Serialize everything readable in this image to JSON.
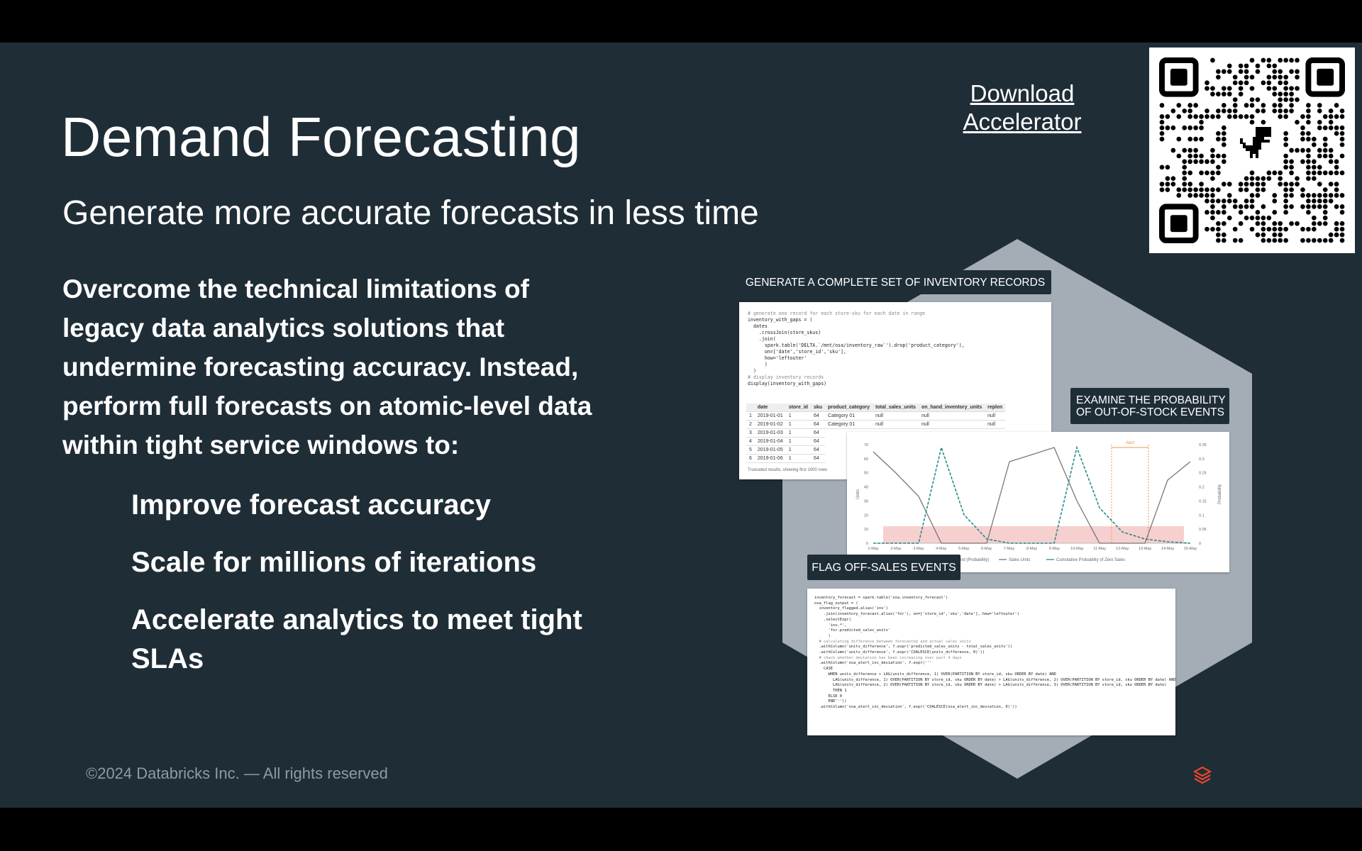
{
  "header": {
    "title": "Demand Forecasting",
    "subtitle": "Generate more accurate forecasts in less time",
    "link": [
      "Download",
      "Accelerator"
    ]
  },
  "body": {
    "paragraph": [
      "Overcome the technical limitations of",
      "legacy data analytics solutions that",
      "undermine forecasting accuracy. Instead,",
      "perform full forecasts on atomic-level data",
      "within tight service windows to:"
    ],
    "bullets": [
      [
        "Improve forecast accuracy"
      ],
      [
        "Scale for millions of iterations"
      ],
      [
        "Accelerate analytics to meet tight",
        "SLAs"
      ]
    ]
  },
  "panels": {
    "inventory": {
      "label": "GENERATE A COMPLETE SET OF INVENTORY RECORDS",
      "code": [
        "# generate one record for each store-sku for each date in range",
        "inventory_with_gaps = (",
        "  dates",
        "    .crossJoin(store_skus)",
        "    .join(",
        "      spark.table('DELTA.`/mnt/osa/inventory_raw`').drop('product_category'),",
        "      on=['date','store_id','sku'],",
        "      how='leftouter'",
        "      )",
        "  )",
        "# display inventory records",
        "display(inventory_with_gaps)"
      ],
      "columns": [
        "date",
        "store_id",
        "sku",
        "product_category",
        "total_sales_units",
        "on_hand_inventory_units",
        "replen"
      ],
      "rows": [
        [
          "1",
          "2019-01-01",
          "1",
          "64",
          "Category 01",
          "null",
          "null",
          "null"
        ],
        [
          "2",
          "2019-01-02",
          "1",
          "64",
          "Category 01",
          "null",
          "null",
          "null"
        ],
        [
          "3",
          "2019-01-03",
          "1",
          "64"
        ],
        [
          "4",
          "2019-01-04",
          "1",
          "64"
        ],
        [
          "5",
          "2019-01-05",
          "1",
          "64"
        ],
        [
          "6",
          "2019-01-06",
          "1",
          "64"
        ]
      ],
      "note": "Truncated results, showing first 1000 rows"
    },
    "probability": {
      "label": [
        "EXAMINE THE PROBABILITY",
        "OF OUT-OF-STOCK EVENTS"
      ],
      "alert": "Alert",
      "y_label": "Units",
      "y2_label": "Probability",
      "yticks": [
        "0",
        "10",
        "20",
        "30",
        "40",
        "50",
        "60",
        "70"
      ],
      "y2ticks": [
        "0",
        "0.05",
        "0.1",
        "0.15",
        "0.2",
        "0.25",
        "0.3",
        "0.35"
      ],
      "x_labels": [
        "1-May",
        "2-May",
        "3-May",
        "4-May",
        "5-May",
        "6-May",
        "7-May",
        "8-May",
        "9-May",
        "10-May",
        "11-May",
        "12-May",
        "13-May",
        "14-May",
        "15-May"
      ],
      "legend": [
        "nd (Probability)",
        "Sales Units",
        "Cumulative Probability of Zero Sales"
      ]
    },
    "flag": {
      "label": "FLAG OFF-SALES EVENTS",
      "code": [
        "inventory_forecast = spark.table('osa.inventory_forecast')",
        "osa_flag_output = (",
        "  inventory_flagged.alias('inv')",
        "    .join(inventory_forecast.alias('for'), on=['store_id','sku','date'], how='leftouter')",
        "    .selectExpr(",
        "      'inv.*',",
        "      'for.predicted_sales_units'",
        "      )",
        "  # calculating difference between forecasted and actual sales units",
        "  .withColumn('units_difference', f.expr('predicted_sales_units - total_sales_units'))",
        "  .withColumn('units_difference', f.expr('COALESCE(units_difference, 0)'))",
        "  # check whether deviation has been increasing over past 4 days",
        "  .withColumn('osa_alert_inc_deviation', f.expr('''",
        "    CASE",
        "      WHEN units_difference > LAG(units_difference, 1) OVER(PARTITION BY store_id, sku ORDER BY date) AND",
        "        LAG(units_difference, 1) OVER(PARTITION BY store_id, sku ORDER BY date) > LAG(units_difference, 2) OVER(PARTITION BY store_id, sku ORDER BY date) AND",
        "        LAG(units_difference, 2) OVER(PARTITION BY store_id, sku ORDER BY date) > LAG(units_difference, 3) OVER(PARTITION BY store_id, sku ORDER BY date)",
        "        THEN 1",
        "      ELSE 0",
        "      END'''))",
        "  .withColumn('osa_alert_inc_deviation', f.expr('COALESCE(osa_alert_inc_deviation, 0)'))"
      ]
    }
  },
  "footer": {
    "copyright": "©2024 Databricks Inc. — All rights reserved"
  }
}
